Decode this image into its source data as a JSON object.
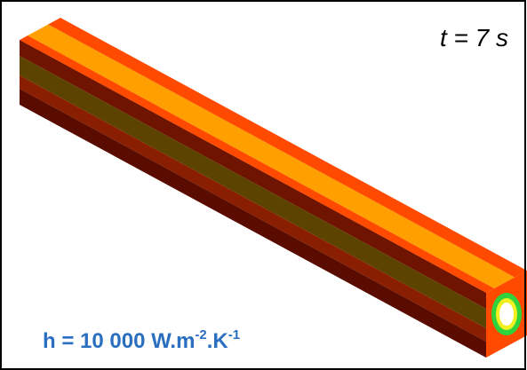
{
  "time_label": "t = 7 s",
  "coefficient_label": {
    "main": "h = 10 000 W.m",
    "exp1": "-2",
    "mid": ".K",
    "exp2": "-1"
  }
}
